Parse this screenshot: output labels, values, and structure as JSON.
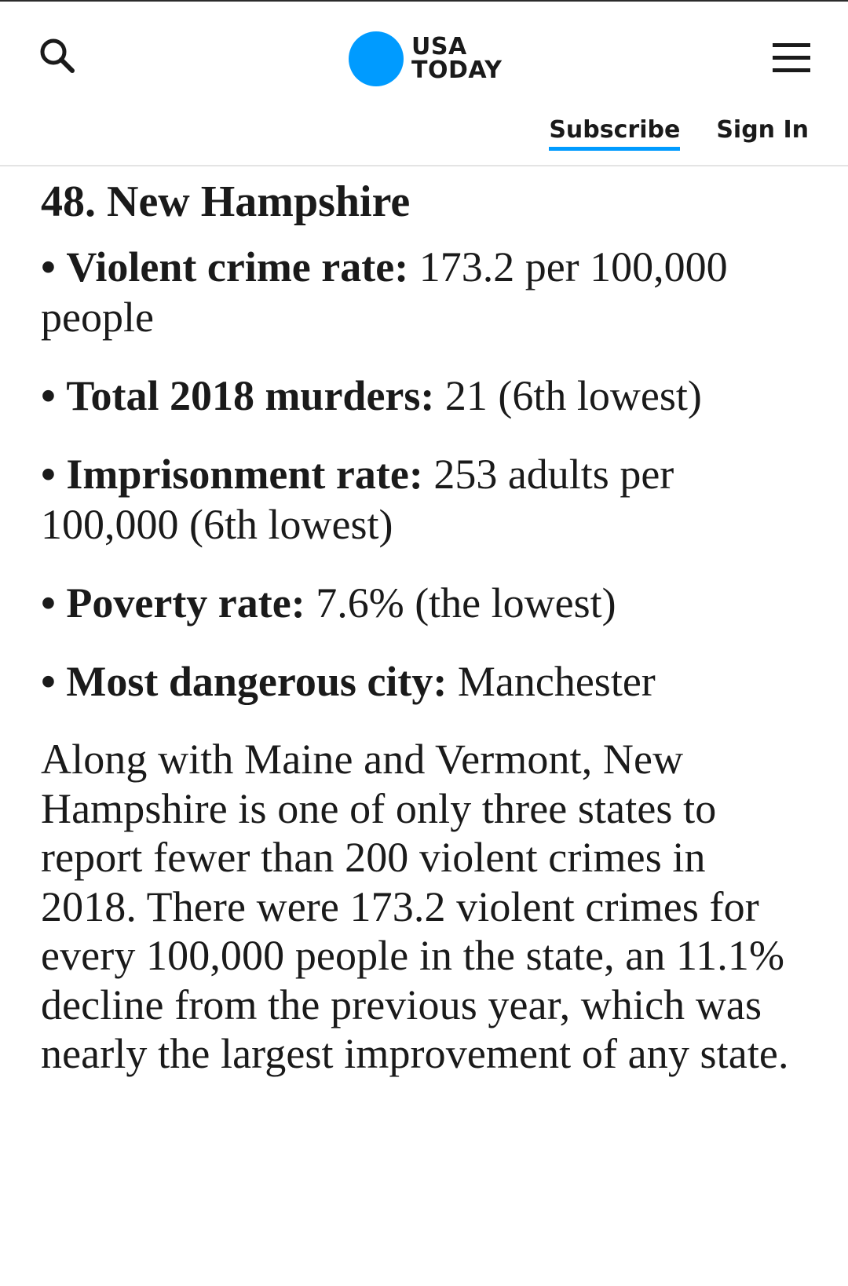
{
  "header": {
    "logo_line1": "USA",
    "logo_line2": "TODAY",
    "brand_color": "#009bff",
    "subscribe_label": "Subscribe",
    "signin_label": "Sign In",
    "search_icon": "search-icon",
    "menu_icon": "hamburger-menu-icon"
  },
  "article": {
    "title": "48. New Hampshire",
    "bullet_char": "•",
    "facts": [
      {
        "label": "Violent crime rate:",
        "value": "173.2 per 100,000 people"
      },
      {
        "label": "Total 2018 murders:",
        "value": "21 (6th lowest)"
      },
      {
        "label": "Imprisonment rate:",
        "value": "253 adults per 100,000 (6th lowest)"
      },
      {
        "label": "Poverty rate:",
        "value": "7.6% (the lowest)"
      },
      {
        "label": "Most dangerous city:",
        "value": "Manchester"
      }
    ],
    "paragraph": "Along with Maine and Vermont, New Hampshire is one of only three states to report fewer than 200 violent crimes in 2018. There were 173.2 violent crimes for every 100,000 people in the state, an 11.1% decline from the previous year, which was nearly the largest improvement of any state."
  }
}
